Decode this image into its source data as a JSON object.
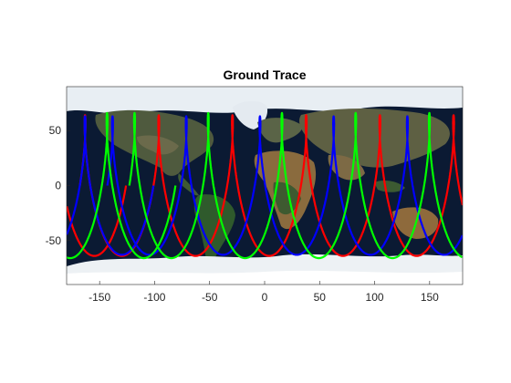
{
  "chart_data": {
    "type": "line",
    "title": "Ground Trace",
    "xlabel": "",
    "ylabel": "",
    "xlim": [
      -180,
      180
    ],
    "ylim": [
      -90,
      90
    ],
    "xticks": [
      -150,
      -100,
      -50,
      0,
      50,
      100,
      150
    ],
    "yticks": [
      -50,
      0,
      50
    ],
    "background": "earth-satellite-map",
    "grid": false,
    "legend": "none",
    "series": [
      {
        "color": "#ff0000",
        "inclination_deg": 64,
        "lon_start": -180,
        "revs": 6,
        "lon_step_per_rev": 67
      },
      {
        "color": "#0000ff",
        "inclination_deg": 63,
        "lon_start": -155,
        "revs": 6,
        "lon_step_per_rev": 67
      },
      {
        "color": "#00ff00",
        "inclination_deg": 66,
        "lon_start": -135,
        "revs": 6,
        "lon_step_per_rev": 67
      }
    ]
  }
}
